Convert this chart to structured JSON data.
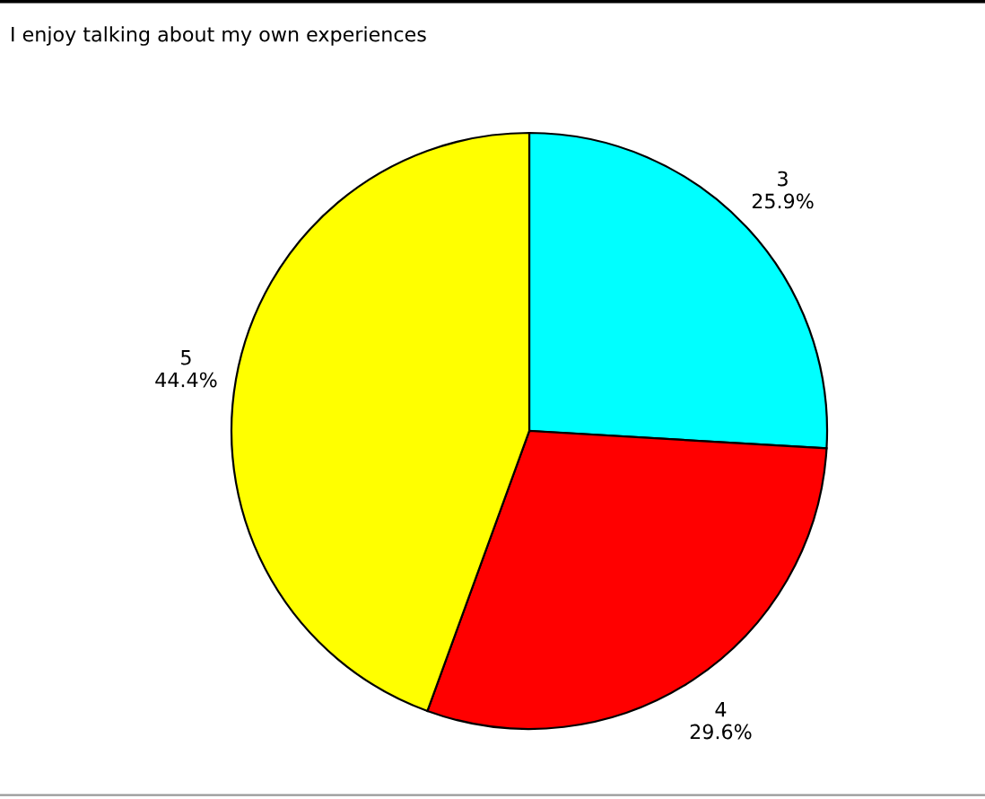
{
  "chart_data": {
    "type": "pie",
    "title": "I enjoy talking about my own experiences",
    "categories": [
      "3",
      "4",
      "5"
    ],
    "values": [
      25.9,
      29.6,
      44.4
    ],
    "colors": [
      "#00ffff",
      "#ff0000",
      "#ffff00"
    ],
    "value_labels": [
      "25.9%",
      "29.6%",
      "44.4%"
    ]
  }
}
